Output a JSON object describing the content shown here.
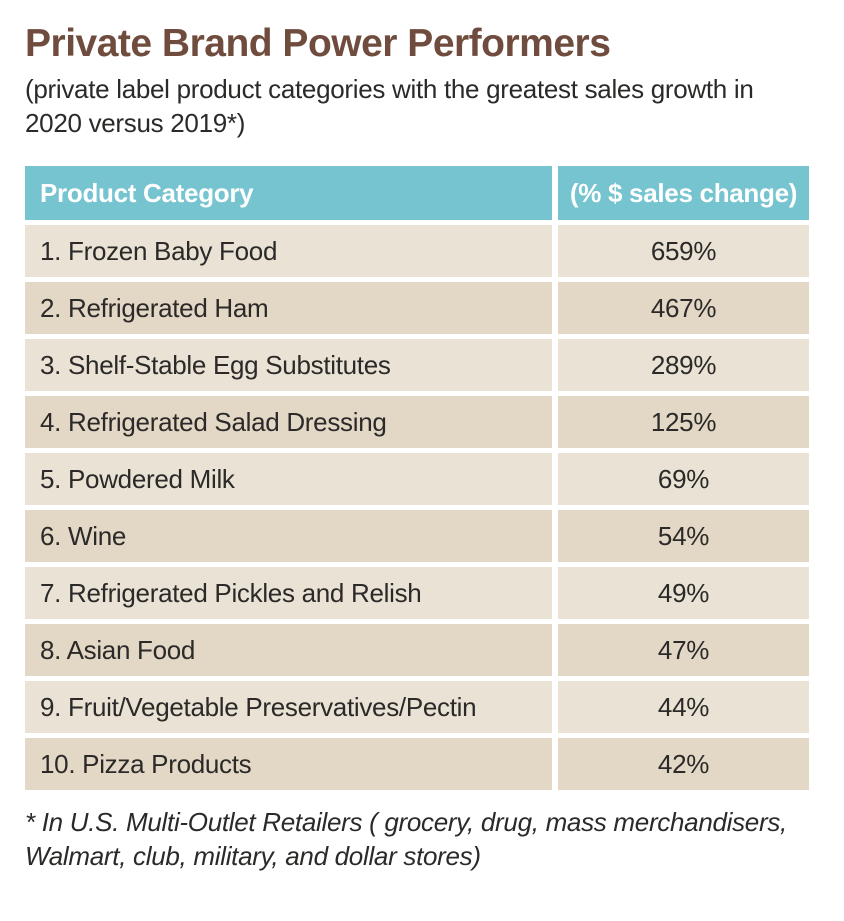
{
  "title": "Private Brand Power Performers",
  "subtitle": "(private label product categories with the greatest sales growth in 2020 versus 2019*)",
  "footnote": "* In U.S. Multi-Outlet Retailers ( grocery, drug, mass merchandisers, Walmart, club, military, and dollar stores)",
  "colors": {
    "title_brown": "#6f4c3e",
    "header_teal": "#75c4d0",
    "header_text": "#ffffff",
    "row_light": "#eae2d5",
    "row_dark": "#e3d7c6",
    "text_dark": "#2b2a28"
  },
  "table": {
    "columns": [
      "Product Category",
      "(% $ sales change)"
    ],
    "rows": [
      {
        "category": "1. Frozen Baby Food",
        "change": "659%"
      },
      {
        "category": "2. Refrigerated Ham",
        "change": "467%"
      },
      {
        "category": "3. Shelf-Stable Egg Substitutes",
        "change": "289%"
      },
      {
        "category": "4. Refrigerated Salad Dressing",
        "change": "125%"
      },
      {
        "category": "5. Powdered Milk",
        "change": "69%"
      },
      {
        "category": "6. Wine",
        "change": "54%"
      },
      {
        "category": "7. Refrigerated Pickles and Relish",
        "change": "49%"
      },
      {
        "category": "8. Asian Food",
        "change": "47%"
      },
      {
        "category": "9. Fruit/Vegetable Preservatives/Pectin",
        "change": "44%"
      },
      {
        "category": "10. Pizza Products",
        "change": "42%"
      }
    ]
  },
  "chart_data": {
    "type": "table",
    "title": "Private Brand Power Performers",
    "subtitle": "private label product categories with the greatest sales growth in 2020 versus 2019",
    "columns": [
      "Product Category",
      "(% $ sales change)"
    ],
    "categories": [
      "Frozen Baby Food",
      "Refrigerated Ham",
      "Shelf-Stable Egg Substitutes",
      "Refrigerated Salad Dressing",
      "Powdered Milk",
      "Wine",
      "Refrigerated Pickles and Relish",
      "Asian Food",
      "Fruit/Vegetable Preservatives/Pectin",
      "Pizza Products"
    ],
    "values": [
      659,
      467,
      289,
      125,
      69,
      54,
      49,
      47,
      44,
      42
    ],
    "units": "%",
    "footnote": "In U.S. Multi-Outlet Retailers (grocery, drug, mass merchandisers, Walmart, club, military, and dollar stores)"
  }
}
